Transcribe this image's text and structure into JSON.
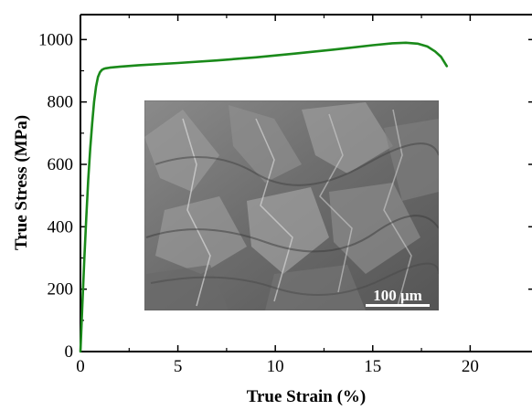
{
  "chart_data": {
    "type": "line",
    "xlabel": "True Strain (%)",
    "ylabel": "True Stress (MPa)",
    "xlim": [
      0,
      22
    ],
    "ylim": [
      0,
      1080
    ],
    "x_ticks": [
      0,
      5,
      10,
      15,
      20
    ],
    "y_ticks": [
      0,
      200,
      400,
      600,
      800,
      1000
    ],
    "grid": false,
    "series": [
      {
        "color": "#1a8a1a",
        "x": [
          0,
          0.1,
          0.2,
          0.3,
          0.4,
          0.5,
          0.6,
          0.7,
          0.8,
          0.9,
          1.0,
          1.1,
          1.2,
          1.3,
          1.5,
          2.0,
          3.0,
          5.0,
          7.0,
          9.0,
          11.0,
          13.0,
          15.0,
          16.0,
          16.7,
          17.3,
          17.8,
          18.2,
          18.5,
          18.8
        ],
        "y": [
          0,
          150,
          300,
          430,
          550,
          650,
          730,
          800,
          850,
          880,
          895,
          903,
          906,
          908,
          910,
          913,
          918,
          925,
          933,
          943,
          955,
          968,
          982,
          988,
          990,
          987,
          978,
          962,
          945,
          915
        ]
      }
    ],
    "inset_image": {
      "description": "SEM fractograph",
      "scale_bar_label": "100 μm"
    }
  },
  "colors": {
    "line": "#1a8a1a",
    "axis": "#000000"
  }
}
